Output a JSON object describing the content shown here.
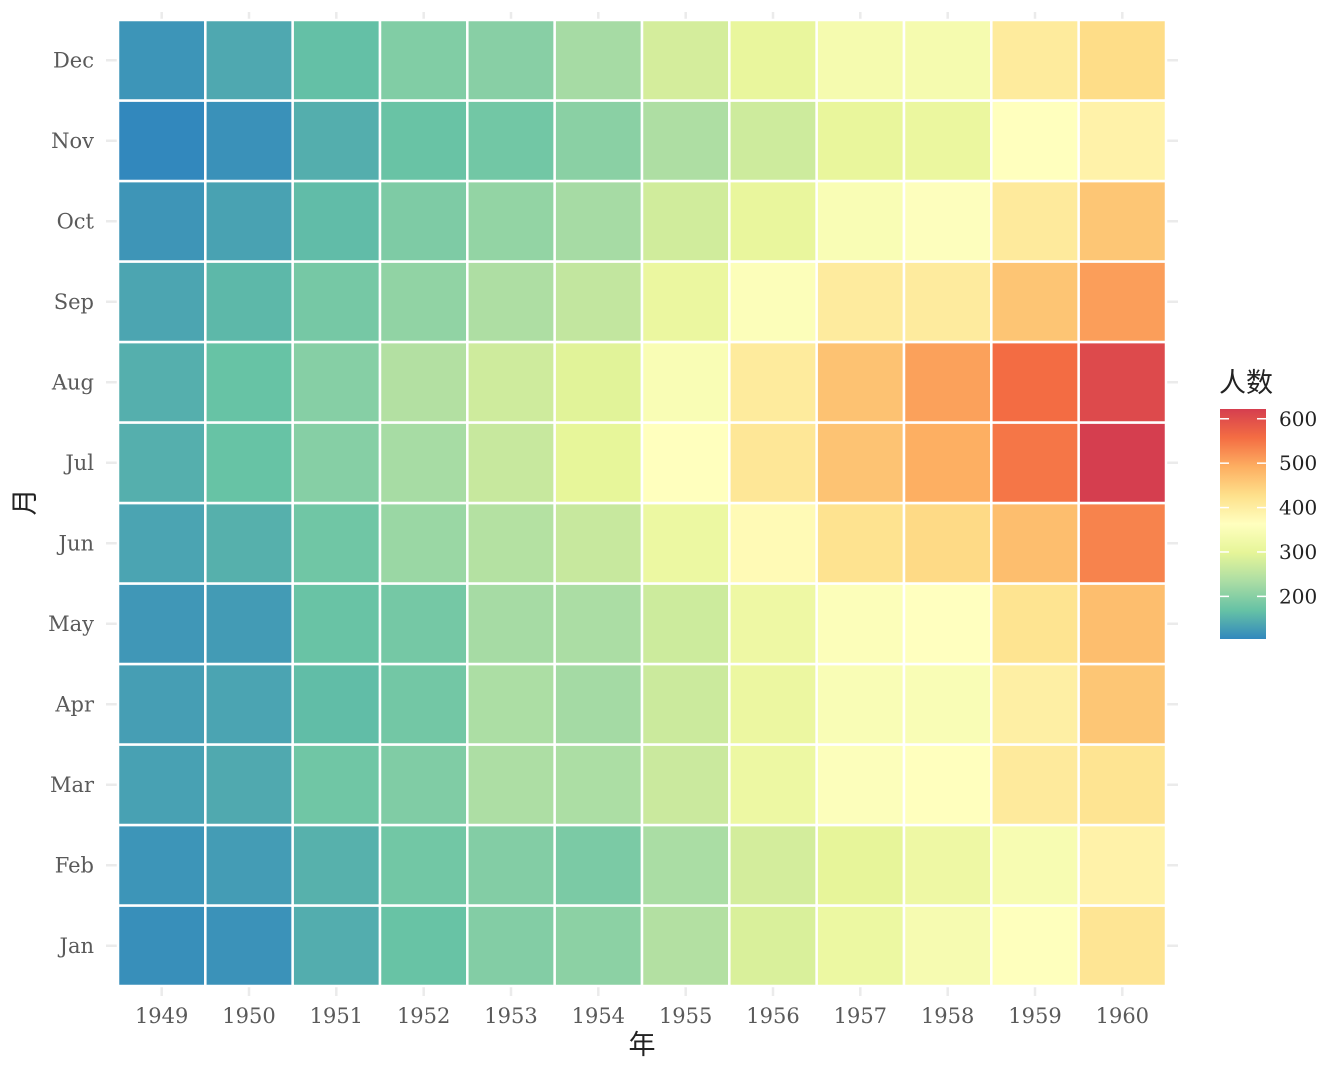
{
  "chart_data": {
    "type": "heatmap",
    "xlabel": "年",
    "ylabel": "月",
    "x_categories": [
      "1949",
      "1950",
      "1951",
      "1952",
      "1953",
      "1954",
      "1955",
      "1956",
      "1957",
      "1958",
      "1959",
      "1960"
    ],
    "y_categories": [
      "Jan",
      "Feb",
      "Mar",
      "Apr",
      "May",
      "Jun",
      "Jul",
      "Aug",
      "Sep",
      "Oct",
      "Nov",
      "Dec"
    ],
    "values": [
      [
        112,
        115,
        145,
        171,
        196,
        204,
        242,
        284,
        315,
        340,
        360,
        417
      ],
      [
        118,
        126,
        150,
        180,
        196,
        188,
        233,
        277,
        301,
        318,
        342,
        391
      ],
      [
        132,
        141,
        178,
        193,
        236,
        235,
        267,
        317,
        356,
        362,
        406,
        419
      ],
      [
        129,
        135,
        163,
        181,
        235,
        227,
        269,
        313,
        348,
        348,
        396,
        461
      ],
      [
        121,
        125,
        172,
        183,
        229,
        234,
        270,
        318,
        355,
        363,
        420,
        472
      ],
      [
        135,
        149,
        178,
        218,
        243,
        264,
        315,
        374,
        422,
        435,
        472,
        535
      ],
      [
        148,
        170,
        199,
        230,
        264,
        302,
        364,
        413,
        465,
        491,
        548,
        622
      ],
      [
        148,
        170,
        199,
        242,
        272,
        293,
        347,
        405,
        467,
        505,
        559,
        606
      ],
      [
        136,
        158,
        184,
        209,
        237,
        259,
        312,
        355,
        404,
        404,
        463,
        508
      ],
      [
        119,
        133,
        162,
        191,
        211,
        229,
        274,
        306,
        347,
        359,
        407,
        461
      ],
      [
        104,
        114,
        146,
        172,
        180,
        203,
        237,
        271,
        305,
        310,
        362,
        390
      ],
      [
        118,
        140,
        166,
        194,
        201,
        229,
        278,
        306,
        336,
        337,
        405,
        432
      ]
    ],
    "colorbar": {
      "title": "人数",
      "ticks": [
        "200",
        "300",
        "400",
        "500",
        "600"
      ],
      "tick_values": [
        200,
        300,
        400,
        500,
        600
      ],
      "min": 104,
      "max": 622,
      "palette": [
        "#3288BD",
        "#66C2A5",
        "#ABDDA4",
        "#E6F598",
        "#FFFFBF",
        "#FEE08B",
        "#FDAE61",
        "#F46D43",
        "#D53E4F"
      ]
    },
    "grid": true,
    "legend_position": "right"
  }
}
